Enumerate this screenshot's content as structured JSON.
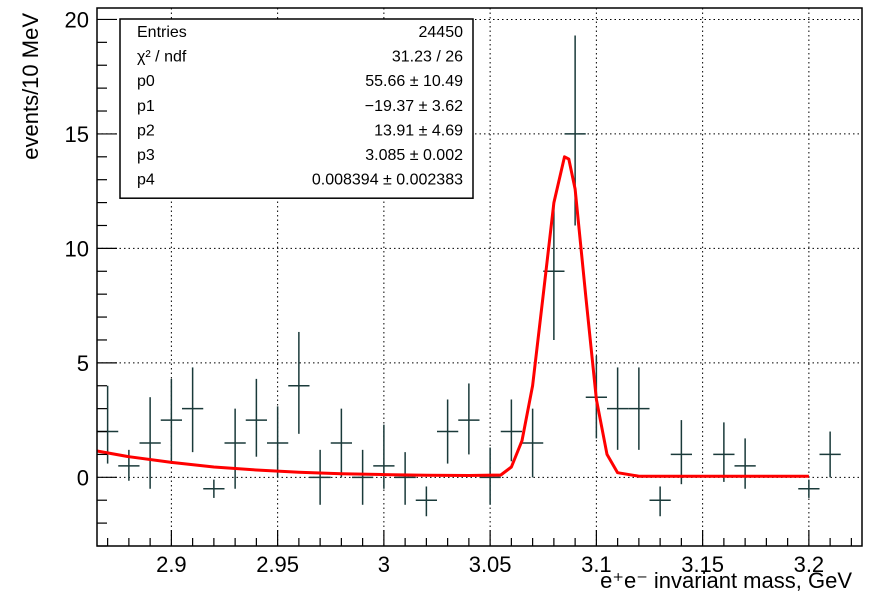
{
  "chart_data": {
    "type": "scatter",
    "title": "",
    "xlabel": "e⁺e⁻ invariant mass, GeV",
    "ylabel": "events/10 MeV",
    "xlim": [
      2.865,
      3.225
    ],
    "ylim": [
      -3,
      20.5
    ],
    "x_ticks": [
      2.9,
      2.95,
      3.0,
      3.05,
      3.1,
      3.15,
      3.2
    ],
    "x_tick_labels": [
      "2.9",
      "2.95",
      "3",
      "3.05",
      "3.1",
      "3.15",
      "3.2"
    ],
    "y_ticks": [
      0,
      5,
      10,
      15,
      20
    ],
    "y_tick_labels": [
      "0",
      "5",
      "10",
      "15",
      "20"
    ],
    "grid": true,
    "colors": {
      "data": "#1a3a3a",
      "fit": "#ff0000",
      "frame": "#000000"
    },
    "series": [
      {
        "type": "errorbar",
        "bin_half_width": 0.005,
        "points": [
          {
            "x": 2.87,
            "y": 2.0,
            "yerr_lo": 1.4,
            "yerr_hi": 2.0
          },
          {
            "x": 2.88,
            "y": 0.5,
            "yerr_lo": 0.65,
            "yerr_hi": 0.7
          },
          {
            "x": 2.89,
            "y": 1.5,
            "yerr_lo": 2.0,
            "yerr_hi": 2.0
          },
          {
            "x": 2.9,
            "y": 2.5,
            "yerr_lo": 1.9,
            "yerr_hi": 1.8
          },
          {
            "x": 2.91,
            "y": 3.0,
            "yerr_lo": 1.9,
            "yerr_hi": 1.8
          },
          {
            "x": 2.92,
            "y": -0.5,
            "yerr_lo": 0.4,
            "yerr_hi": 0.4
          },
          {
            "x": 2.93,
            "y": 1.5,
            "yerr_lo": 2.0,
            "yerr_hi": 1.5
          },
          {
            "x": 2.94,
            "y": 2.5,
            "yerr_lo": 1.6,
            "yerr_hi": 1.8
          },
          {
            "x": 2.95,
            "y": 1.5,
            "yerr_lo": 1.5,
            "yerr_hi": 1.6
          },
          {
            "x": 2.96,
            "y": 4.0,
            "yerr_lo": 2.1,
            "yerr_hi": 2.35
          },
          {
            "x": 2.97,
            "y": 0.0,
            "yerr_lo": 1.2,
            "yerr_hi": 1.2
          },
          {
            "x": 2.98,
            "y": 1.5,
            "yerr_lo": 1.5,
            "yerr_hi": 1.5
          },
          {
            "x": 2.99,
            "y": 0.0,
            "yerr_lo": 1.2,
            "yerr_hi": 1.2
          },
          {
            "x": 3.0,
            "y": 0.5,
            "yerr_lo": 1.0,
            "yerr_hi": 1.8
          },
          {
            "x": 3.01,
            "y": 0.0,
            "yerr_lo": 1.2,
            "yerr_hi": 1.1
          },
          {
            "x": 3.02,
            "y": -1.0,
            "yerr_lo": 0.7,
            "yerr_hi": 0.6
          },
          {
            "x": 3.03,
            "y": 2.0,
            "yerr_lo": 1.4,
            "yerr_hi": 1.4
          },
          {
            "x": 3.04,
            "y": 2.5,
            "yerr_lo": 1.5,
            "yerr_hi": 1.6
          },
          {
            "x": 3.05,
            "y": 0.0,
            "yerr_lo": 1.2,
            "yerr_hi": 1.3
          },
          {
            "x": 3.06,
            "y": 2.0,
            "yerr_lo": 1.3,
            "yerr_hi": 1.4
          },
          {
            "x": 3.07,
            "y": 1.5,
            "yerr_lo": 1.5,
            "yerr_hi": 1.5
          },
          {
            "x": 3.08,
            "y": 9.0,
            "yerr_lo": 3.0,
            "yerr_hi": 3.0
          },
          {
            "x": 3.09,
            "y": 15.0,
            "yerr_lo": 4.0,
            "yerr_hi": 4.3
          },
          {
            "x": 3.1,
            "y": 3.5,
            "yerr_lo": 1.8,
            "yerr_hi": 1.8
          },
          {
            "x": 3.11,
            "y": 3.0,
            "yerr_lo": 1.8,
            "yerr_hi": 1.8
          },
          {
            "x": 3.12,
            "y": 3.0,
            "yerr_lo": 1.8,
            "yerr_hi": 1.8
          },
          {
            "x": 3.13,
            "y": -1.0,
            "yerr_lo": 0.7,
            "yerr_hi": 0.6
          },
          {
            "x": 3.14,
            "y": 1.0,
            "yerr_lo": 1.3,
            "yerr_hi": 1.5
          },
          {
            "x": 3.16,
            "y": 1.0,
            "yerr_lo": 1.2,
            "yerr_hi": 1.4
          },
          {
            "x": 3.17,
            "y": 0.5,
            "yerr_lo": 1.0,
            "yerr_hi": 1.2
          },
          {
            "x": 3.2,
            "y": -0.5,
            "yerr_lo": 0.4,
            "yerr_hi": 0.4
          },
          {
            "x": 3.21,
            "y": 1.0,
            "yerr_lo": 1.0,
            "yerr_hi": 1.0
          }
        ]
      },
      {
        "type": "line",
        "x": [
          2.865,
          2.88,
          2.9,
          2.92,
          2.94,
          2.96,
          2.98,
          3.0,
          3.02,
          3.04,
          3.055,
          3.06,
          3.065,
          3.07,
          3.075,
          3.08,
          3.085,
          3.087,
          3.09,
          3.095,
          3.1,
          3.105,
          3.11,
          3.12,
          3.15,
          3.2
        ],
        "values": [
          1.15,
          0.9,
          0.65,
          0.45,
          0.32,
          0.22,
          0.16,
          0.12,
          0.09,
          0.08,
          0.1,
          0.45,
          1.6,
          4.0,
          8.0,
          12.0,
          14.0,
          13.9,
          12.6,
          7.9,
          3.4,
          1.0,
          0.2,
          0.05,
          0.05,
          0.05
        ]
      }
    ],
    "stats_box": {
      "position": "top-left",
      "rows": [
        {
          "label": "Entries",
          "value": "24450"
        },
        {
          "label": "χ² / ndf",
          "value": "31.23 / 26"
        },
        {
          "label": "p0",
          "value": "55.66 ± 10.49"
        },
        {
          "label": "p1",
          "value": "−19.37 ± 3.62"
        },
        {
          "label": "p2",
          "value": "13.91 ± 4.69"
        },
        {
          "label": "p3",
          "value": "3.085 ± 0.002"
        },
        {
          "label": "p4",
          "value": "0.008394 ± 0.002383"
        }
      ]
    }
  }
}
